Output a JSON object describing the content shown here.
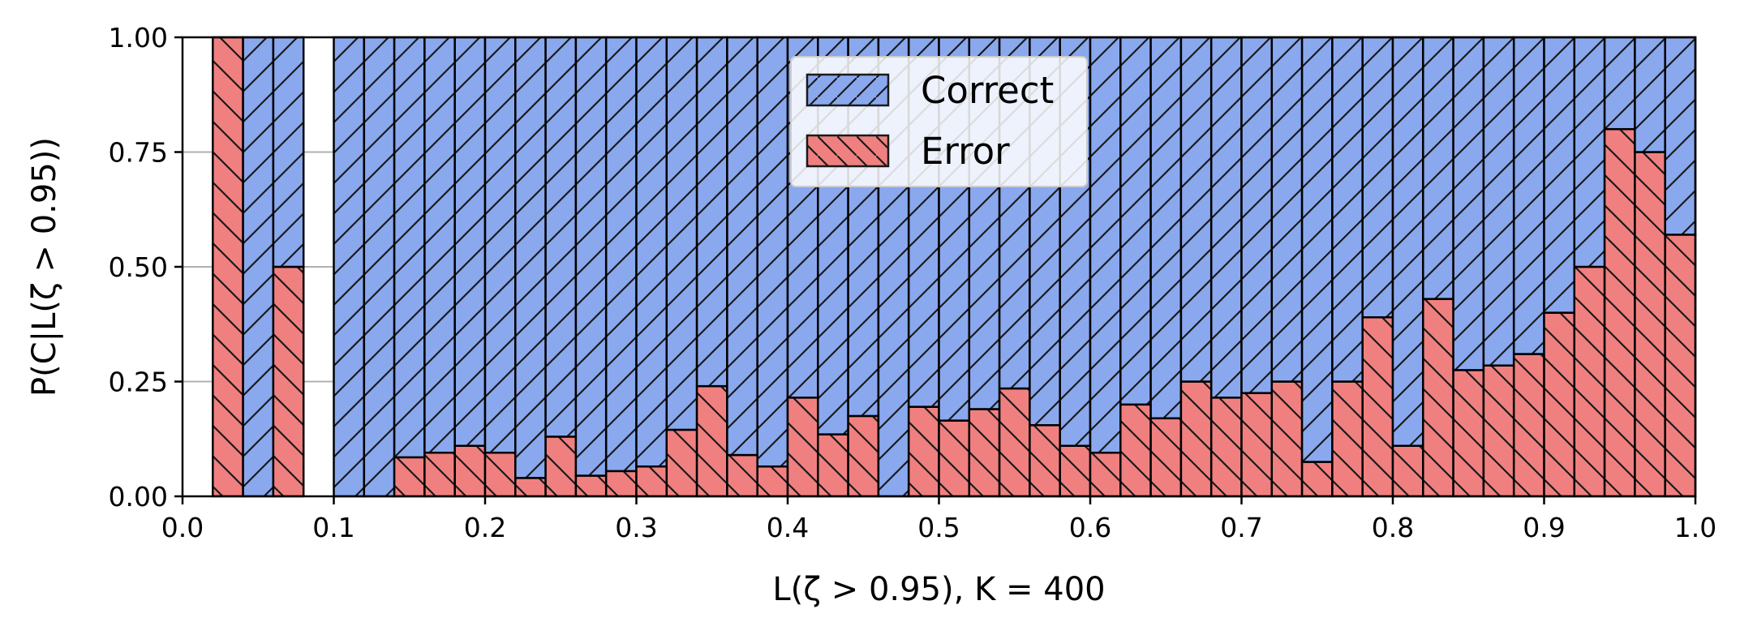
{
  "chart_data": {
    "type": "bar",
    "stacked": true,
    "bin_width": 0.02,
    "x": [
      0.01,
      0.03,
      0.05,
      0.07,
      0.09,
      0.11,
      0.13,
      0.15,
      0.17,
      0.19,
      0.21,
      0.23,
      0.25,
      0.27,
      0.29,
      0.31,
      0.33,
      0.35,
      0.37,
      0.39,
      0.41,
      0.43,
      0.45,
      0.47,
      0.49,
      0.51,
      0.53,
      0.55,
      0.57,
      0.59,
      0.61,
      0.63,
      0.65,
      0.67,
      0.69,
      0.71,
      0.73,
      0.75,
      0.77,
      0.79,
      0.81,
      0.83,
      0.85,
      0.87,
      0.89,
      0.91,
      0.93,
      0.95,
      0.97,
      0.99
    ],
    "series": [
      {
        "name": "Correct",
        "color": "#8aa8ee",
        "hatch": "forward-diagonal",
        "values": [
          0,
          0,
          1,
          0.5,
          0,
          1,
          1,
          0.915,
          0.905,
          0.89,
          0.905,
          0.96,
          0.87,
          0.955,
          0.945,
          0.935,
          0.855,
          0.76,
          0.91,
          0.935,
          0.785,
          0.865,
          0.825,
          1,
          0.805,
          0.835,
          0.81,
          0.765,
          0.845,
          0.89,
          0.905,
          0.8,
          0.83,
          0.75,
          0.785,
          0.775,
          0.75,
          0.925,
          0.75,
          0.61,
          0.89,
          0.57,
          0.725,
          0.715,
          0.69,
          0.6,
          0.5,
          0.2,
          0.25,
          0.43
        ]
      },
      {
        "name": "Error",
        "color": "#f08080",
        "hatch": "back-diagonal",
        "values": [
          0,
          1,
          0,
          0.5,
          0,
          0,
          0,
          0.085,
          0.095,
          0.11,
          0.095,
          0.04,
          0.13,
          0.045,
          0.055,
          0.065,
          0.145,
          0.24,
          0.09,
          0.065,
          0.215,
          0.135,
          0.175,
          0,
          0.195,
          0.165,
          0.19,
          0.235,
          0.155,
          0.11,
          0.095,
          0.2,
          0.17,
          0.25,
          0.215,
          0.225,
          0.25,
          0.075,
          0.25,
          0.39,
          0.11,
          0.43,
          0.275,
          0.285,
          0.31,
          0.4,
          0.5,
          0.8,
          0.75,
          0.57
        ]
      }
    ],
    "xlabel": "L(ζ > 0.95), K = 400",
    "ylabel": "P(C|L(ζ > 0.95))",
    "xlim": [
      0,
      1
    ],
    "ylim": [
      0,
      1
    ],
    "xticks": [
      "0.0",
      "0.1",
      "0.2",
      "0.3",
      "0.4",
      "0.5",
      "0.6",
      "0.7",
      "0.8",
      "0.9",
      "1.0"
    ],
    "yticks": [
      "0.00",
      "0.25",
      "0.50",
      "0.75",
      "1.00"
    ],
    "grid": true,
    "legend_position": "top-center"
  }
}
